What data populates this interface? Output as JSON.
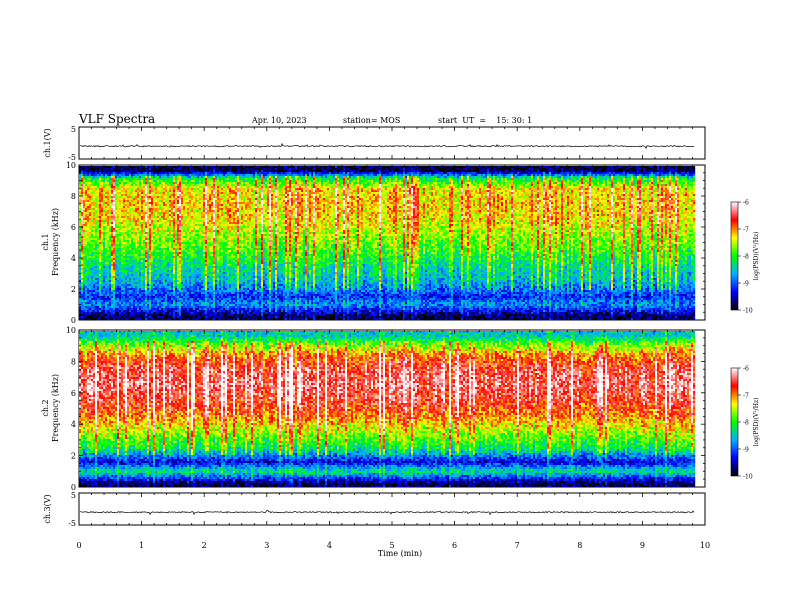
{
  "header": {
    "title": "VLF Spectra",
    "date": "Apr. 10, 2023",
    "station": "station= MOS",
    "start": "start  UT  =    15: 30: 1"
  },
  "colorbar": {
    "label": "log(PSD)(V²/Hz)",
    "ticks": [
      "-6",
      "-7",
      "-8",
      "-9",
      "-10"
    ],
    "stops": [
      "#000000",
      "#0000ff",
      "#00b0ff",
      "#00ff00",
      "#ffff00",
      "#ff0000",
      "#ffffff"
    ]
  },
  "panels": {
    "ch1v": {
      "ylabel": "ch.1(V)",
      "yticks": [
        "5",
        "-5"
      ]
    },
    "ch1": {
      "ylabel": "ch.1\nFrequency (kHz)",
      "yticks": [
        "10",
        "8",
        "6",
        "4",
        "2",
        "0"
      ]
    },
    "ch2": {
      "ylabel": "ch.2\nFrequency (kHz)",
      "yticks": [
        "10",
        "8",
        "6",
        "4",
        "2",
        "0"
      ]
    },
    "ch3v": {
      "ylabel": "ch.3(V)",
      "yticks": [
        "5",
        "-5"
      ]
    }
  },
  "xaxis": {
    "label": "Time (min)",
    "ticks": [
      "0",
      "1",
      "2",
      "3",
      "4",
      "5",
      "6",
      "7",
      "8",
      "9",
      "10"
    ]
  },
  "chart_data": [
    {
      "type": "line",
      "title": "",
      "ylabel": "ch.1(V)",
      "xlabel": "",
      "xlim": [
        0,
        10
      ],
      "ylim": [
        -5,
        5
      ],
      "series": [
        {
          "values_note": "",
          "approx_level": -1
        }
      ]
    },
    {
      "type": "heatmap",
      "ylabel": "ch.1 Frequency (kHz)",
      "xlim": [
        0,
        9.83
      ],
      "ylim": [
        0,
        10
      ],
      "color_scale": "log(PSD)(V²/Hz)",
      "zlim": [
        -10,
        -6
      ],
      "band_profile": [
        {
          "f": 0.25,
          "level": -9.8
        },
        {
          "f": 1.0,
          "level": -8.8
        },
        {
          "f": 1.5,
          "level": -9.2
        },
        {
          "f": 2.5,
          "level": -8.6
        },
        {
          "f": 3.5,
          "level": -8.3
        },
        {
          "f": 4.5,
          "level": -7.9
        },
        {
          "f": 5.5,
          "level": -7.6
        },
        {
          "f": 6.5,
          "level": -7.3
        },
        {
          "f": 7.5,
          "level": -7.2
        },
        {
          "f": 8.5,
          "level": -7.3
        },
        {
          "f": 9.2,
          "level": -8.2
        },
        {
          "f": 9.7,
          "level": -9.9
        }
      ]
    },
    {
      "type": "heatmap",
      "ylabel": "ch.2 Frequency (kHz)",
      "xlim": [
        0,
        9.83
      ],
      "ylim": [
        0,
        10
      ],
      "color_scale": "log(PSD)(V²/Hz)",
      "zlim": [
        -10,
        -6
      ],
      "band_profile": [
        {
          "f": 0.25,
          "level": -9.8
        },
        {
          "f": 1.0,
          "level": -8.3
        },
        {
          "f": 1.6,
          "level": -9.4
        },
        {
          "f": 2.5,
          "level": -8.2
        },
        {
          "f": 3.5,
          "level": -7.6
        },
        {
          "f": 4.5,
          "level": -7.0
        },
        {
          "f": 5.5,
          "level": -6.6
        },
        {
          "f": 6.5,
          "level": -6.4
        },
        {
          "f": 7.5,
          "level": -6.5
        },
        {
          "f": 8.5,
          "level": -7.0
        },
        {
          "f": 9.2,
          "level": -7.8
        },
        {
          "f": 9.7,
          "level": -8.5
        }
      ]
    },
    {
      "type": "line",
      "title": "",
      "ylabel": "ch.3(V)",
      "xlabel": "Time (min)",
      "xlim": [
        0,
        10
      ],
      "ylim": [
        -5,
        5
      ],
      "series": [
        {
          "values_note": "",
          "approx_level": -1
        }
      ]
    }
  ]
}
